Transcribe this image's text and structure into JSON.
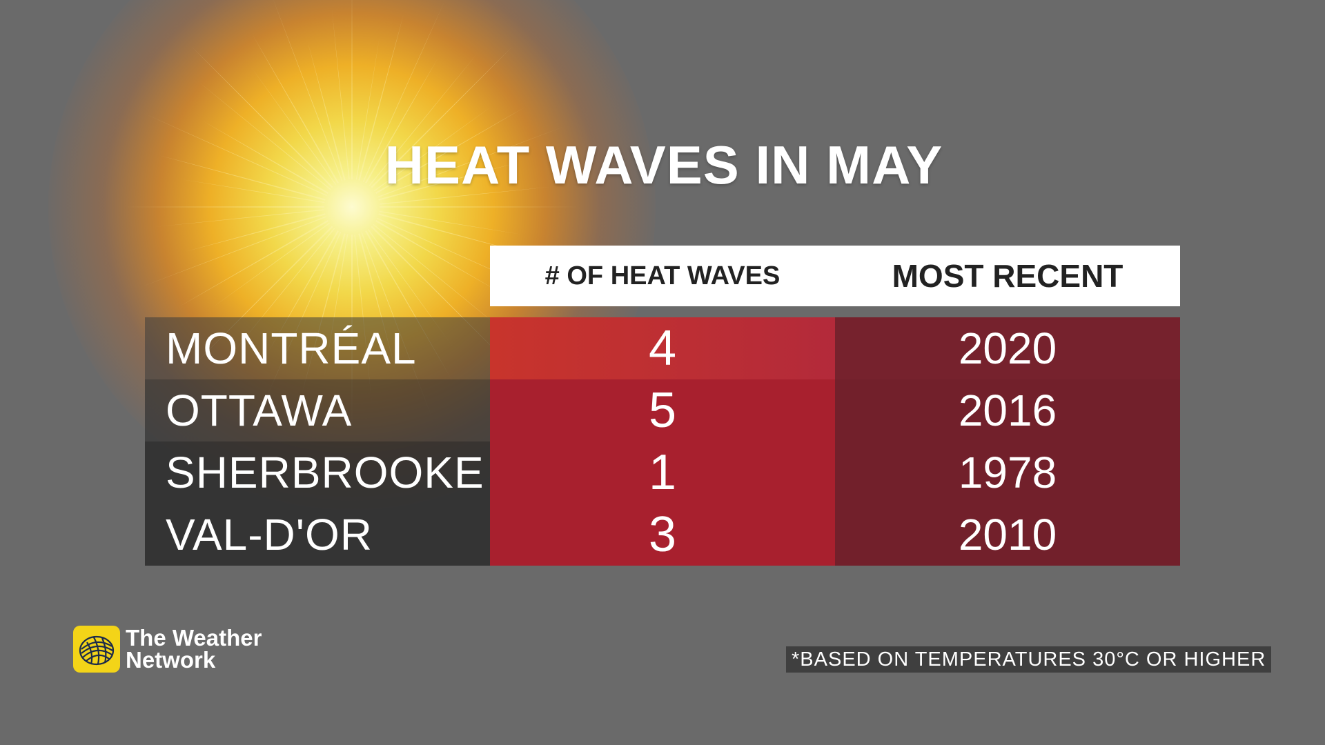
{
  "chart_data": {
    "type": "table",
    "title": "HEAT WAVES IN MAY",
    "columns": [
      "# OF HEAT WAVES",
      "MOST RECENT"
    ],
    "rows": [
      {
        "city": "MONTRÉAL",
        "heat_waves": "4",
        "most_recent": "2020"
      },
      {
        "city": "OTTAWA",
        "heat_waves": "5",
        "most_recent": "2016"
      },
      {
        "city": "SHERBROOKE",
        "heat_waves": "1",
        "most_recent": "1978"
      },
      {
        "city": "VAL-D'OR",
        "heat_waves": "3",
        "most_recent": "2010"
      }
    ],
    "footnote": "*BASED ON TEMPERATURES 30°C OR HIGHER"
  },
  "brand": {
    "line1": "The Weather",
    "line2": "Network",
    "logo_icon": "weather-network-swirl-icon",
    "logo_color": "#f3d418"
  },
  "colors": {
    "background": "#6a6a6a",
    "count_column": "#a8202e",
    "year_column": "#72202b",
    "city_column": "#282828"
  }
}
